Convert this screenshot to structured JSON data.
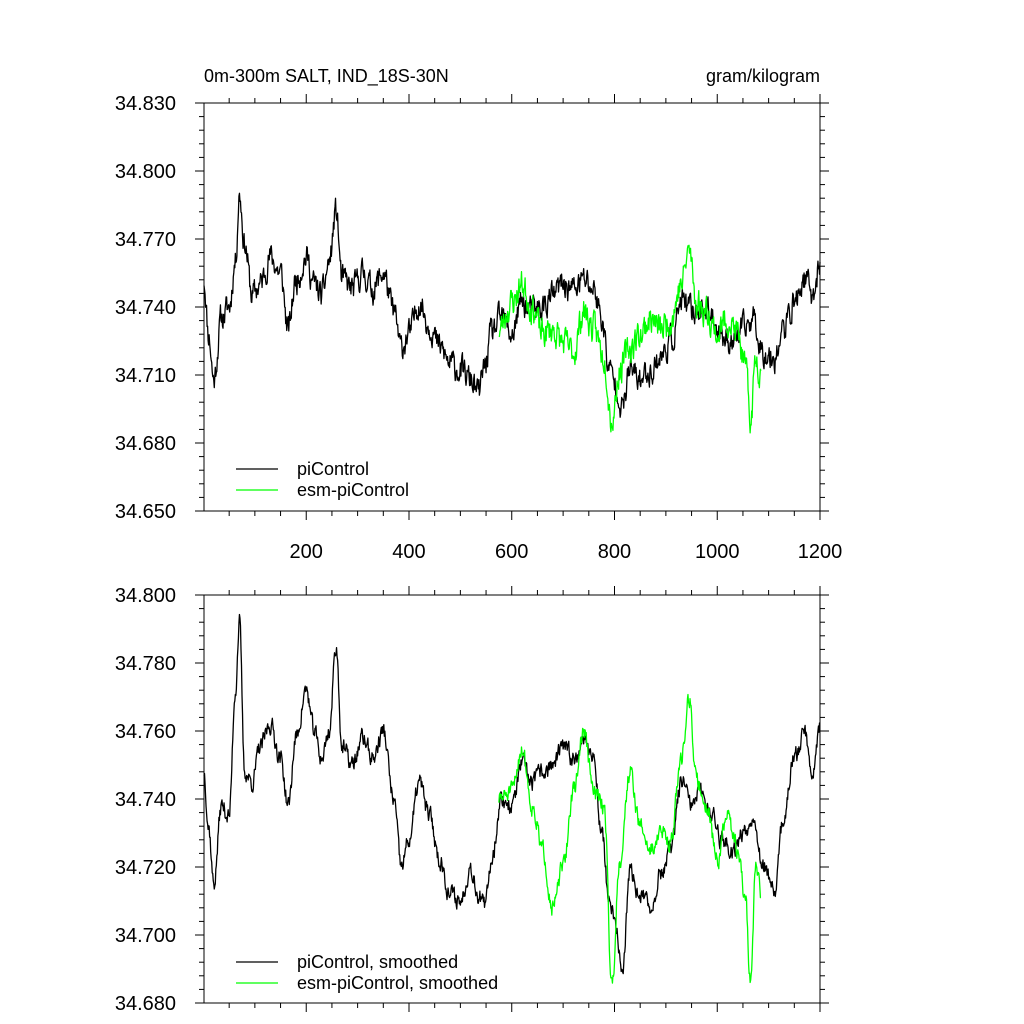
{
  "chart_data": [
    {
      "type": "line",
      "title_left": "0m-300m SALT, IND_18S-30N",
      "title_right": "gram/kilogram",
      "xlim": [
        1,
        1200
      ],
      "ylim": [
        34.65,
        34.83
      ],
      "x_ticks": [
        200,
        400,
        600,
        800,
        1000,
        1200
      ],
      "x_tick_labels": [
        "200",
        "400",
        "600",
        "800",
        "1000",
        "1200"
      ],
      "y_ticks": [
        34.65,
        34.68,
        34.71,
        34.74,
        34.77,
        34.8,
        34.83
      ],
      "y_tick_labels": [
        "34.650",
        "34.680",
        "34.710",
        "34.740",
        "34.770",
        "34.800",
        "34.830"
      ],
      "legend_position": "bottom-left",
      "series": [
        {
          "name": "piControl",
          "color": "#000000",
          "x_start": 1,
          "x_end": 1200,
          "anchors": [
            [
              1,
              34.752
            ],
            [
              10,
              34.728
            ],
            [
              20,
              34.708
            ],
            [
              35,
              34.735
            ],
            [
              50,
              34.74
            ],
            [
              62,
              34.76
            ],
            [
              70,
              34.79
            ],
            [
              80,
              34.768
            ],
            [
              95,
              34.745
            ],
            [
              110,
              34.75
            ],
            [
              130,
              34.762
            ],
            [
              150,
              34.755
            ],
            [
              165,
              34.73
            ],
            [
              180,
              34.752
            ],
            [
              200,
              34.762
            ],
            [
              215,
              34.75
            ],
            [
              230,
              34.745
            ],
            [
              245,
              34.76
            ],
            [
              258,
              34.782
            ],
            [
              270,
              34.752
            ],
            [
              290,
              34.748
            ],
            [
              310,
              34.755
            ],
            [
              330,
              34.748
            ],
            [
              350,
              34.755
            ],
            [
              370,
              34.738
            ],
            [
              385,
              34.722
            ],
            [
              400,
              34.728
            ],
            [
              420,
              34.742
            ],
            [
              440,
              34.732
            ],
            [
              460,
              34.722
            ],
            [
              480,
              34.715
            ],
            [
              500,
              34.712
            ],
            [
              520,
              34.708
            ],
            [
              535,
              34.702
            ],
            [
              548,
              34.714
            ],
            [
              560,
              34.728
            ],
            [
              580,
              34.735
            ],
            [
              600,
              34.728
            ],
            [
              620,
              34.742
            ],
            [
              640,
              34.738
            ],
            [
              660,
              34.74
            ],
            [
              680,
              34.745
            ],
            [
              700,
              34.75
            ],
            [
              720,
              34.748
            ],
            [
              740,
              34.752
            ],
            [
              760,
              34.748
            ],
            [
              775,
              34.735
            ],
            [
              790,
              34.712
            ],
            [
              805,
              34.705
            ],
            [
              815,
              34.695
            ],
            [
              830,
              34.712
            ],
            [
              850,
              34.708
            ],
            [
              870,
              34.712
            ],
            [
              890,
              34.718
            ],
            [
              910,
              34.725
            ],
            [
              930,
              34.742
            ],
            [
              950,
              34.738
            ],
            [
              970,
              34.74
            ],
            [
              990,
              34.735
            ],
            [
              1010,
              34.728
            ],
            [
              1030,
              34.725
            ],
            [
              1050,
              34.73
            ],
            [
              1070,
              34.735
            ],
            [
              1090,
              34.72
            ],
            [
              1110,
              34.718
            ],
            [
              1130,
              34.73
            ],
            [
              1150,
              34.742
            ],
            [
              1170,
              34.752
            ],
            [
              1185,
              34.745
            ],
            [
              1200,
              34.758
            ]
          ],
          "noise": 0.009,
          "seed": 11
        },
        {
          "name": "esm-piControl",
          "color": "#00ff00",
          "x_start": 575,
          "x_end": 1085,
          "anchors": [
            [
              575,
              34.73
            ],
            [
              600,
              34.742
            ],
            [
              620,
              34.75
            ],
            [
              640,
              34.74
            ],
            [
              660,
              34.728
            ],
            [
              680,
              34.73
            ],
            [
              700,
              34.724
            ],
            [
              720,
              34.72
            ],
            [
              740,
              34.738
            ],
            [
              760,
              34.73
            ],
            [
              780,
              34.718
            ],
            [
              795,
              34.69
            ],
            [
              810,
              34.712
            ],
            [
              830,
              34.722
            ],
            [
              850,
              34.728
            ],
            [
              870,
              34.735
            ],
            [
              890,
              34.73
            ],
            [
              910,
              34.735
            ],
            [
              930,
              34.75
            ],
            [
              945,
              34.765
            ],
            [
              960,
              34.742
            ],
            [
              980,
              34.738
            ],
            [
              1000,
              34.728
            ],
            [
              1020,
              34.735
            ],
            [
              1040,
              34.728
            ],
            [
              1055,
              34.712
            ],
            [
              1065,
              34.69
            ],
            [
              1075,
              34.718
            ],
            [
              1085,
              34.712
            ]
          ],
          "noise": 0.01,
          "seed": 23
        }
      ]
    },
    {
      "type": "line",
      "xlim": [
        1,
        1200
      ],
      "ylim": [
        34.68,
        34.8
      ],
      "x_ticks": [
        200,
        400,
        600,
        800,
        1000,
        1200
      ],
      "y_ticks": [
        34.68,
        34.7,
        34.72,
        34.74,
        34.76,
        34.78,
        34.8
      ],
      "y_tick_labels": [
        "34.680",
        "34.700",
        "34.720",
        "34.740",
        "34.760",
        "34.780",
        "34.800"
      ],
      "legend_position": "bottom-left",
      "series": [
        {
          "name": "piControl, smoothed",
          "color": "#000000",
          "x_start": 1,
          "x_end": 1200,
          "anchors": [
            [
              1,
              34.748
            ],
            [
              10,
              34.732
            ],
            [
              20,
              34.715
            ],
            [
              35,
              34.738
            ],
            [
              50,
              34.735
            ],
            [
              62,
              34.772
            ],
            [
              70,
              34.792
            ],
            [
              80,
              34.748
            ],
            [
              95,
              34.745
            ],
            [
              110,
              34.755
            ],
            [
              130,
              34.762
            ],
            [
              150,
              34.752
            ],
            [
              165,
              34.738
            ],
            [
              180,
              34.758
            ],
            [
              200,
              34.772
            ],
            [
              215,
              34.76
            ],
            [
              230,
              34.752
            ],
            [
              245,
              34.76
            ],
            [
              258,
              34.785
            ],
            [
              270,
              34.755
            ],
            [
              290,
              34.75
            ],
            [
              310,
              34.758
            ],
            [
              330,
              34.752
            ],
            [
              350,
              34.76
            ],
            [
              370,
              34.74
            ],
            [
              385,
              34.72
            ],
            [
              400,
              34.728
            ],
            [
              420,
              34.745
            ],
            [
              440,
              34.735
            ],
            [
              460,
              34.722
            ],
            [
              480,
              34.712
            ],
            [
              500,
              34.71
            ],
            [
              520,
              34.72
            ],
            [
              535,
              34.712
            ],
            [
              548,
              34.708
            ],
            [
              560,
              34.722
            ],
            [
              580,
              34.74
            ],
            [
              600,
              34.738
            ],
            [
              620,
              34.75
            ],
            [
              640,
              34.745
            ],
            [
              660,
              34.748
            ],
            [
              680,
              34.75
            ],
            [
              700,
              34.755
            ],
            [
              720,
              34.752
            ],
            [
              740,
              34.758
            ],
            [
              760,
              34.752
            ],
            [
              775,
              34.73
            ],
            [
              790,
              34.71
            ],
            [
              805,
              34.7
            ],
            [
              815,
              34.688
            ],
            [
              830,
              34.718
            ],
            [
              850,
              34.712
            ],
            [
              870,
              34.708
            ],
            [
              890,
              34.718
            ],
            [
              910,
              34.725
            ],
            [
              930,
              34.745
            ],
            [
              950,
              34.738
            ],
            [
              970,
              34.742
            ],
            [
              990,
              34.735
            ],
            [
              1010,
              34.728
            ],
            [
              1030,
              34.725
            ],
            [
              1050,
              34.73
            ],
            [
              1070,
              34.735
            ],
            [
              1090,
              34.72
            ],
            [
              1110,
              34.712
            ],
            [
              1130,
              34.735
            ],
            [
              1150,
              34.752
            ],
            [
              1170,
              34.76
            ],
            [
              1185,
              34.748
            ],
            [
              1200,
              34.762
            ]
          ],
          "noise": 0.004,
          "seed": 37
        },
        {
          "name": "esm-piControl, smoothed",
          "color": "#00ff00",
          "x_start": 575,
          "x_end": 1085,
          "anchors": [
            [
              575,
              34.74
            ],
            [
              600,
              34.742
            ],
            [
              620,
              34.755
            ],
            [
              640,
              34.738
            ],
            [
              660,
              34.725
            ],
            [
              680,
              34.708
            ],
            [
              700,
              34.72
            ],
            [
              720,
              34.742
            ],
            [
              740,
              34.76
            ],
            [
              760,
              34.742
            ],
            [
              780,
              34.738
            ],
            [
              795,
              34.685
            ],
            [
              810,
              34.722
            ],
            [
              830,
              34.748
            ],
            [
              850,
              34.732
            ],
            [
              870,
              34.725
            ],
            [
              890,
              34.73
            ],
            [
              910,
              34.728
            ],
            [
              930,
              34.752
            ],
            [
              945,
              34.77
            ],
            [
              960,
              34.745
            ],
            [
              980,
              34.738
            ],
            [
              1000,
              34.722
            ],
            [
              1020,
              34.735
            ],
            [
              1040,
              34.725
            ],
            [
              1055,
              34.71
            ],
            [
              1065,
              34.686
            ],
            [
              1075,
              34.72
            ],
            [
              1085,
              34.712
            ]
          ],
          "noise": 0.004,
          "seed": 51
        }
      ]
    }
  ]
}
